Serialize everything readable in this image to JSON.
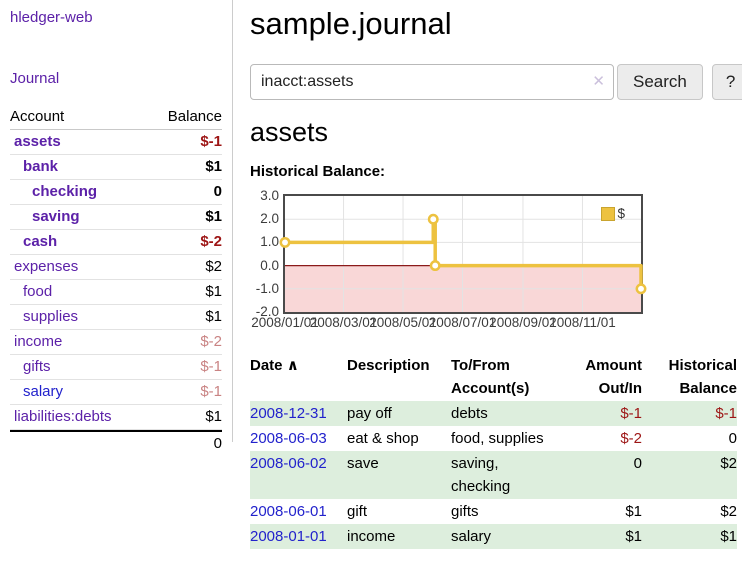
{
  "sidebar": {
    "app_title": "hledger-web",
    "journal_link": "Journal",
    "account_header": "Account",
    "balance_header": "Balance",
    "accounts": [
      {
        "name": "assets",
        "balance": "$-1"
      },
      {
        "name": "bank",
        "balance": "$1"
      },
      {
        "name": "checking",
        "balance": "0"
      },
      {
        "name": "saving",
        "balance": "$1"
      },
      {
        "name": "cash",
        "balance": "$-2"
      },
      {
        "name": "expenses",
        "balance": "$2"
      },
      {
        "name": "food",
        "balance": "$1"
      },
      {
        "name": "supplies",
        "balance": "$1"
      },
      {
        "name": "income",
        "balance": "$-2"
      },
      {
        "name": "gifts",
        "balance": "$-1"
      },
      {
        "name": "salary",
        "balance": "$-1"
      },
      {
        "name": "liabilities:debts",
        "balance": "$1"
      }
    ],
    "total": "0"
  },
  "main": {
    "title": "sample.journal",
    "search": {
      "value": "inacct:assets",
      "clear_icon": "✕",
      "search_button": "Search",
      "help_button": "?"
    },
    "account_heading": "assets",
    "section_label": "Historical Balance:"
  },
  "chart_data": {
    "type": "line",
    "title": "Historical Balance:",
    "series": [
      {
        "name": "$",
        "step": true,
        "points": [
          [
            "2008-01-01",
            1
          ],
          [
            "2008-06-01",
            2
          ],
          [
            "2008-06-03",
            0
          ],
          [
            "2008-12-31",
            -1
          ]
        ]
      }
    ],
    "x_range": [
      "2008-01-01",
      "2008-12-31"
    ],
    "ylim": [
      -2,
      3
    ],
    "yticks": [
      "3.0",
      "2.0",
      "1.0",
      "0.0",
      "-1.0",
      "-2.0"
    ],
    "xticks": [
      "2008/01/01",
      "2008/03/01",
      "2008/05/01",
      "2008/07/01",
      "2008/09/01",
      "2008/11/01"
    ],
    "legend": {
      "label": "$",
      "position": "top-right"
    },
    "grid": true,
    "series_color": "#edc240",
    "negative_region_color": "#f9d7d7",
    "zero_line_color": "#8b1a1a"
  },
  "register": {
    "headers": {
      "date": "Date",
      "sort_icon": "∧",
      "description": "Description",
      "account": "To/From Account(s)",
      "amount": "Amount Out/In",
      "balance": "Historical Balance"
    },
    "rows": [
      {
        "date": "2008-12-31",
        "description": "pay off",
        "accounts": "debts",
        "amount": "$-1",
        "balance": "$-1"
      },
      {
        "date": "2008-06-03",
        "description": "eat & shop",
        "accounts": "food, supplies",
        "amount": "$-2",
        "balance": "0"
      },
      {
        "date": "2008-06-02",
        "description": "save",
        "accounts": "saving, checking",
        "amount": "0",
        "balance": "$2"
      },
      {
        "date": "2008-06-01",
        "description": "gift",
        "accounts": "gifts",
        "amount": "$1",
        "balance": "$2"
      },
      {
        "date": "2008-01-01",
        "description": "income",
        "accounts": "salary",
        "amount": "$1",
        "balance": "$1"
      }
    ]
  },
  "colors": {
    "link_purple": "#5c21a8",
    "link_blue": "#2222cc",
    "negative_strong": "#9d1515",
    "negative_soft": "#c98383",
    "row_green": "#ddeedd",
    "series_gold": "#edc240",
    "negative_region_pink": "#f9d7d7",
    "zero_line_red": "#8b1a1a"
  }
}
